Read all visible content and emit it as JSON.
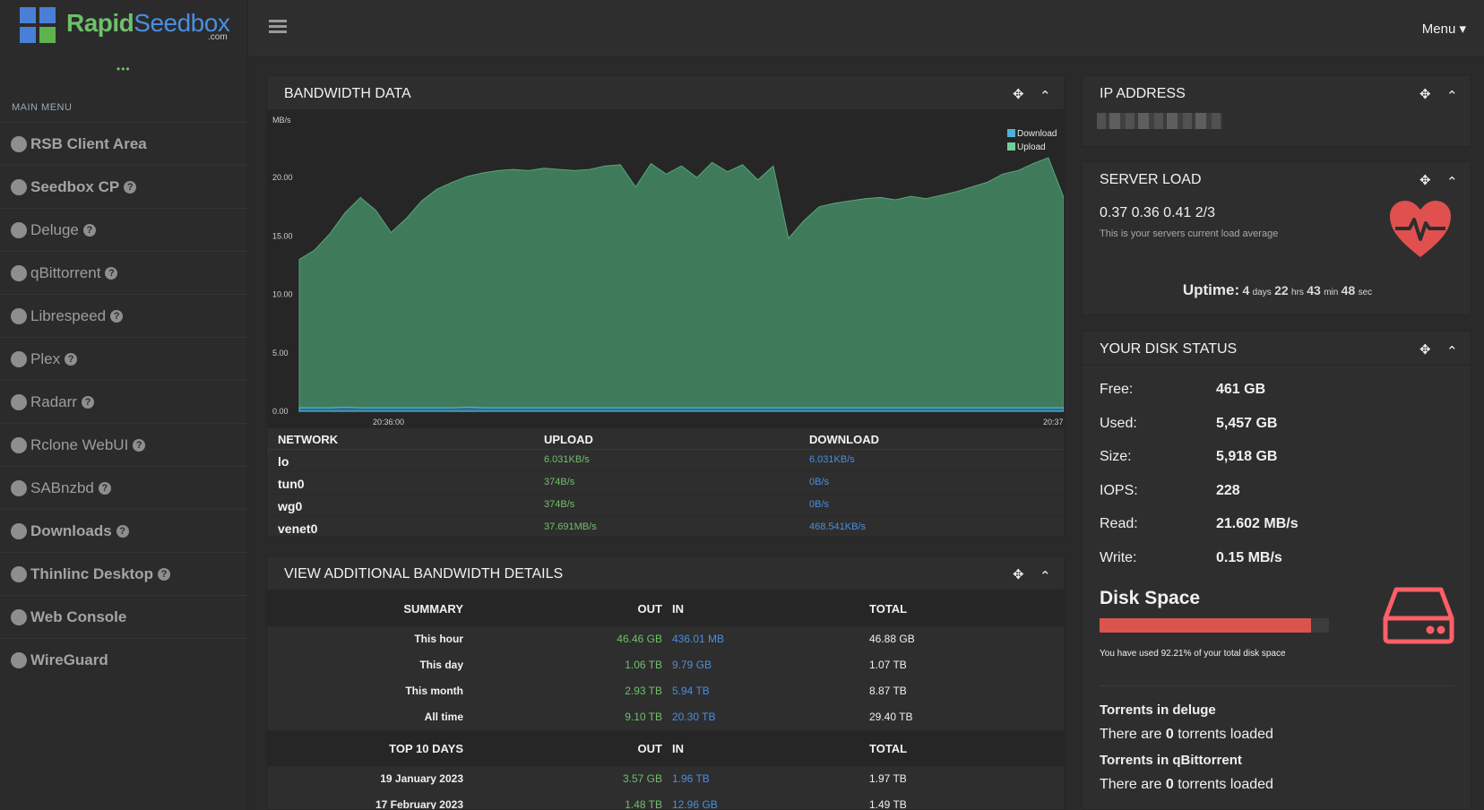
{
  "logo": {
    "brand_a": "Rapid",
    "brand_b": "Seedbox",
    "suffix": ".com"
  },
  "header": {
    "menu_label": "Menu ▾"
  },
  "sidebar": {
    "dots": "•••",
    "section_title": "MAIN MENU",
    "items": [
      {
        "label": "RSB Client Area",
        "icon": "globe-icon",
        "help": false,
        "bold": true
      },
      {
        "label": "Seedbox CP",
        "icon": "globe-icon",
        "help": true,
        "bold": true
      },
      {
        "label": "Deluge",
        "icon": "deluge-icon",
        "help": true,
        "bold": false
      },
      {
        "label": "qBittorrent",
        "icon": "qbittorrent-icon",
        "help": true,
        "bold": false
      },
      {
        "label": "Librespeed",
        "icon": "speedometer-icon",
        "help": true,
        "bold": false
      },
      {
        "label": "Plex",
        "icon": "plex-icon",
        "help": true,
        "bold": false
      },
      {
        "label": "Radarr",
        "icon": "radarr-icon",
        "help": true,
        "bold": false
      },
      {
        "label": "Rclone WebUI",
        "icon": "rclone-icon",
        "help": true,
        "bold": false
      },
      {
        "label": "SABnzbd",
        "icon": "sabnzbd-icon",
        "help": true,
        "bold": false
      },
      {
        "label": "Downloads",
        "icon": "download-icon",
        "help": true,
        "bold": true
      },
      {
        "label": "Thinlinc Desktop",
        "icon": "desktop-icon",
        "help": true,
        "bold": true
      },
      {
        "label": "Web Console",
        "icon": "keyboard-icon",
        "help": false,
        "bold": true
      },
      {
        "label": "WireGuard",
        "icon": "wireguard-icon",
        "help": false,
        "bold": true
      }
    ],
    "help_glyph": "?"
  },
  "bandwidth": {
    "title": "BANDWIDTH DATA",
    "move_glyph": "✥",
    "collapse_glyph": "⌃",
    "chart_data": {
      "type": "area",
      "ylabel": "MB/s",
      "ylim": [
        0,
        25
      ],
      "yticks": [
        "0.00",
        "5.00",
        "10.00",
        "15.00",
        "20.00"
      ],
      "xticks": [
        "20:36:00",
        "20:37"
      ],
      "legend_position": "top-right",
      "series": [
        {
          "name": "Download",
          "color": "#4fb0d8",
          "values": [
            0.3,
            0.3,
            0.3,
            0.35,
            0.3,
            0.3,
            0.3,
            0.3,
            0.3,
            0.3,
            0.3,
            0.35,
            0.3,
            0.3,
            0.3,
            0.3,
            0.3,
            0.3,
            0.3,
            0.3,
            0.3,
            0.3,
            0.3,
            0.3,
            0.3,
            0.3,
            0.3,
            0.3,
            0.3,
            0.3,
            0.3,
            0.3,
            0.3,
            0.3,
            0.3,
            0.3,
            0.3,
            0.3,
            0.3,
            0.3,
            0.3,
            0.3,
            0.3,
            0.3,
            0.3,
            0.3,
            0.3,
            0.3,
            0.3,
            0.3,
            0.3
          ]
        },
        {
          "name": "Upload",
          "color": "#6fcf97",
          "values": [
            13.0,
            13.8,
            15.2,
            17.0,
            18.3,
            17.2,
            15.3,
            16.5,
            18.0,
            19.0,
            19.6,
            20.1,
            20.4,
            20.6,
            20.7,
            20.6,
            20.8,
            20.7,
            20.6,
            20.7,
            21.0,
            21.1,
            19.2,
            21.2,
            20.3,
            21.0,
            20.0,
            21.3,
            20.5,
            21.1,
            19.8,
            21.0,
            14.8,
            16.3,
            17.5,
            17.8,
            18.0,
            18.2,
            18.3,
            18.1,
            18.4,
            18.2,
            18.5,
            18.8,
            19.2,
            19.6,
            20.3,
            20.6,
            21.2,
            21.7,
            18.3
          ]
        }
      ]
    },
    "network": {
      "headers": [
        "NETWORK",
        "UPLOAD",
        "DOWNLOAD"
      ],
      "rows": [
        {
          "iface": "lo",
          "up": "6.031KB/s",
          "down": "6.031KB/s"
        },
        {
          "iface": "tun0",
          "up": "374B/s",
          "down": "0B/s"
        },
        {
          "iface": "wg0",
          "up": "374B/s",
          "down": "0B/s"
        },
        {
          "iface": "venet0",
          "up": "37.691MB/s",
          "down": "468.541KB/s"
        }
      ]
    }
  },
  "bw_details": {
    "title": "VIEW ADDITIONAL BANDWIDTH DETAILS",
    "summary_header": {
      "label": "SUMMARY",
      "out": "OUT",
      "in": "IN",
      "total": "TOTAL"
    },
    "summary": [
      {
        "label": "This hour",
        "out": "46.46 GB",
        "in": "436.01 MB",
        "total": "46.88 GB"
      },
      {
        "label": "This day",
        "out": "1.06 TB",
        "in": "9.79 GB",
        "total": "1.07 TB"
      },
      {
        "label": "This month",
        "out": "2.93 TB",
        "in": "5.94 TB",
        "total": "8.87 TB"
      },
      {
        "label": "All time",
        "out": "9.10 TB",
        "in": "20.30 TB",
        "total": "29.40 TB"
      }
    ],
    "top_header": {
      "label": "TOP 10 DAYS",
      "out": "OUT",
      "in": "IN",
      "total": "TOTAL"
    },
    "top": [
      {
        "label": "19 January 2023",
        "out": "3.57 GB",
        "in": "1.96 TB",
        "total": "1.97 TB"
      },
      {
        "label": "17 February 2023",
        "out": "1.48 TB",
        "in": "12.96 GB",
        "total": "1.49 TB"
      }
    ]
  },
  "ip": {
    "title": "IP ADDRESS"
  },
  "server_load": {
    "title": "SERVER LOAD",
    "values": "0.37 0.36 0.41 2/3",
    "caption": "This is your servers current load average",
    "uptime_label": "Uptime:",
    "days": "4",
    "days_unit": "days",
    "hrs": "22",
    "hrs_unit": "hrs",
    "min": "43",
    "min_unit": "min",
    "sec": "48",
    "sec_unit": "sec"
  },
  "disk": {
    "title": "YOUR DISK STATUS",
    "rows": [
      {
        "label": "Free:",
        "value": "461 GB"
      },
      {
        "label": "Used:",
        "value": "5,457 GB"
      },
      {
        "label": "Size:",
        "value": "5,918 GB"
      },
      {
        "label": "IOPS:",
        "value": "228"
      },
      {
        "label": "Read:",
        "value": "21.602 MB/s"
      },
      {
        "label": "Write:",
        "value": "0.15 MB/s"
      }
    ],
    "space_title": "Disk Space",
    "used_percent": 92.21,
    "caption": "You have used 92.21% of your total disk space",
    "t1_title": "Torrents in deluge",
    "t1_pre": "There are",
    "t1_count": "0",
    "t1_post": "torrents loaded",
    "t2_title": "Torrents in qBittorrent",
    "t2_pre": "There are",
    "t2_count": "0",
    "t2_post": "torrents loaded"
  }
}
